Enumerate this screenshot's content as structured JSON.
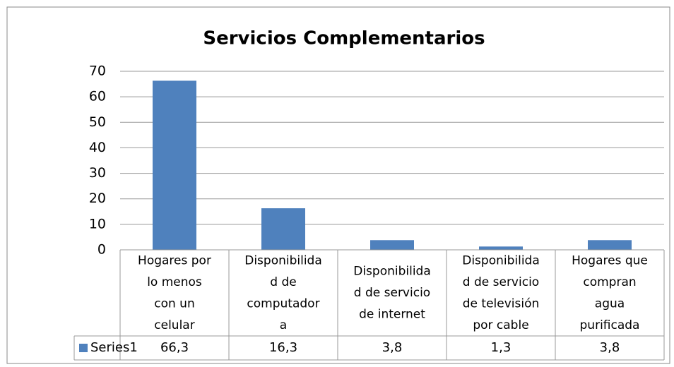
{
  "chart_data": {
    "type": "bar",
    "title": "Servicios Complementarios",
    "categories": [
      [
        "Hogares por",
        "lo menos",
        "con un",
        "celular"
      ],
      [
        "Disponibilida",
        "d de",
        "computador",
        "a"
      ],
      [
        "Disponibilida",
        "d de servicio",
        "de internet"
      ],
      [
        "Disponibilida",
        "d de servicio",
        "de televisión",
        "por cable"
      ],
      [
        "Hogares que",
        "compran",
        "agua",
        "purificada"
      ]
    ],
    "series": [
      {
        "name": "Series1",
        "color": "#4f81bd",
        "values": [
          66.3,
          16.3,
          3.8,
          1.3,
          3.8
        ],
        "value_labels": [
          "66,3",
          "16,3",
          "3,8",
          "1,3",
          "3,8"
        ]
      }
    ],
    "ylim": [
      0,
      70
    ],
    "yticks": [
      0,
      10,
      20,
      30,
      40,
      50,
      60,
      70
    ],
    "grid": true,
    "data_table": true
  }
}
